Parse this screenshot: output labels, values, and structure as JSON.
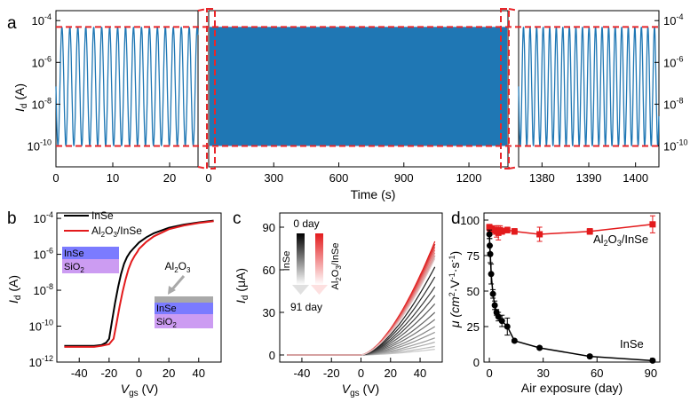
{
  "colors": {
    "blue": "#1f77b4",
    "red_dash": "#e8262a",
    "black": "#000000",
    "red": "#e31a1c",
    "gray": "#b0b0b0",
    "inse_layer": "#7b7bff",
    "sio2_layer": "#cc9cf2",
    "al2o3_layer": "#a9a9a9"
  },
  "panels": {
    "a": "a",
    "b": "b",
    "c": "c",
    "d": "d"
  },
  "chart_data": [
    {
      "id": "a",
      "type": "line",
      "title": "",
      "xlabel": "Time (s)",
      "ylabel_main": "I",
      "ylabel_sub": "d",
      "ylabel_unit": " (A)",
      "yscale": "log",
      "ylim": [
        1e-11,
        0.0003
      ],
      "yticks": [
        {
          "base": "10",
          "exp": "-4"
        },
        {
          "base": "10",
          "exp": "-6"
        },
        {
          "base": "10",
          "exp": "-8"
        },
        {
          "base": "10",
          "exp": "-10"
        }
      ],
      "ytick_values": [
        0.0001,
        1e-06,
        1e-08,
        1e-10
      ],
      "signal": {
        "high": 5e-05,
        "low": 1e-10,
        "period_s": 1.4
      },
      "segments": [
        {
          "name": "start",
          "xlim": [
            0,
            25
          ],
          "xticks": [
            "0",
            "10",
            "20"
          ],
          "xtick_values": [
            0,
            10,
            20
          ]
        },
        {
          "name": "full",
          "xlim": [
            0,
            1380
          ],
          "xticks": [
            "0",
            "300",
            "600",
            "900",
            "1200"
          ],
          "xtick_values": [
            0,
            300,
            600,
            900,
            1200
          ],
          "dense": true
        },
        {
          "name": "end",
          "xlim": [
            1375,
            1405
          ],
          "xticks": [
            "1380",
            "1390",
            "1400"
          ],
          "xtick_values": [
            1380,
            1390,
            1400
          ]
        }
      ]
    },
    {
      "id": "b",
      "type": "line",
      "xlabel_main": "V",
      "xlabel_sub": "gs",
      "xlabel_unit": " (V)",
      "ylabel_main": "I",
      "ylabel_sub": "d",
      "ylabel_unit": " (A)",
      "yscale": "log",
      "xlim": [
        -55,
        55
      ],
      "ylim": [
        1e-12,
        0.0002
      ],
      "xticks": [
        "-40",
        "-20",
        "0",
        "20",
        "40"
      ],
      "xtick_values": [
        -40,
        -20,
        0,
        20,
        40
      ],
      "yticks": [
        {
          "base": "10",
          "exp": "-4"
        },
        {
          "base": "10",
          "exp": "-6"
        },
        {
          "base": "10",
          "exp": "-8"
        },
        {
          "base": "10",
          "exp": "-10"
        },
        {
          "base": "10",
          "exp": "-12"
        }
      ],
      "ytick_values": [
        0.0001,
        1e-06,
        1e-08,
        1e-10,
        1e-12
      ],
      "series": [
        {
          "name": "InSe",
          "color": "#000000",
          "x": [
            -50,
            -40,
            -30,
            -25,
            -22,
            -20,
            -18,
            -16,
            -14,
            -12,
            -10,
            -8,
            -6,
            -4,
            -2,
            0,
            5,
            10,
            20,
            30,
            40,
            50
          ],
          "y": [
            8e-12,
            8e-12,
            8e-12,
            9e-12,
            1.2e-11,
            2e-11,
            2e-10,
            2e-09,
            1.5e-08,
            8e-08,
            3e-07,
            7e-07,
            1.3e-06,
            2e-06,
            3e-06,
            4.5e-06,
            9e-06,
            1.5e-05,
            3e-05,
            4.5e-05,
            6e-05,
            7.5e-05
          ]
        },
        {
          "name": "Al2O3/InSe",
          "color": "#e31a1c",
          "x": [
            -50,
            -40,
            -30,
            -25,
            -20,
            -17,
            -15,
            -13,
            -11,
            -9,
            -7,
            -5,
            -3,
            -1,
            0,
            5,
            10,
            20,
            30,
            40,
            50
          ],
          "y": [
            7e-12,
            7e-12,
            7e-12,
            8e-12,
            1e-11,
            2e-11,
            1.5e-10,
            1.2e-09,
            8e-09,
            4e-08,
            1.5e-07,
            4e-07,
            8e-07,
            1.4e-06,
            2e-06,
            5e-06,
            1e-05,
            2.5e-05,
            4e-05,
            5.5e-05,
            7e-05
          ]
        }
      ],
      "legend": [
        {
          "label": "InSe",
          "color": "#000000"
        },
        {
          "label_main": "Al",
          "sub1": "2",
          "mid": "O",
          "sub2": "3",
          "tail": "/InSe",
          "color": "#e31a1c"
        }
      ],
      "inset1": {
        "top": "InSe",
        "bottom_main": "SiO",
        "bottom_sub": "2"
      },
      "inset2": {
        "label_main": "Al",
        "sub1": "2",
        "mid": "O",
        "sub2": "3",
        "mid_layer": "InSe",
        "bottom_main": "SiO",
        "bottom_sub": "2"
      }
    },
    {
      "id": "c",
      "type": "line",
      "xlabel_main": "V",
      "xlabel_sub": "gs",
      "xlabel_unit": " (V)",
      "ylabel_main": "I",
      "ylabel_sub": "d",
      "ylabel_unit": " (μA)",
      "xlim": [
        -55,
        55
      ],
      "ylim": [
        -5,
        100
      ],
      "xticks": [
        "-40",
        "-20",
        "0",
        "20",
        "40"
      ],
      "xtick_values": [
        -40,
        -20,
        0,
        20,
        40
      ],
      "yticks": [
        "0",
        "30",
        "60",
        "90"
      ],
      "ytick_values": [
        0,
        30,
        60,
        90
      ],
      "threshold_v": 0,
      "inse_endpoints_uA": [
        78,
        70,
        62,
        55,
        48,
        42,
        36,
        30,
        25,
        20,
        16,
        12,
        9,
        6,
        4
      ],
      "al2o3_endpoints_uA": [
        80,
        78,
        76,
        74,
        72,
        70,
        68
      ],
      "legend_top": "0 day",
      "legend_bottom": "91 day",
      "legend_left": "InSe",
      "legend_right_main": "Al",
      "legend_right_sub1": "2",
      "legend_right_mid": "O",
      "legend_right_sub2": "3",
      "legend_right_tail": "/InSe"
    },
    {
      "id": "d",
      "type": "scatter",
      "xlabel": "Air exposure (day)",
      "ylabel_main": "μ (cm",
      "ylabel_sup1": "2",
      "ylabel_mid": "·V",
      "ylabel_sup2": "-1",
      "ylabel_mid2": "·s",
      "ylabel_sup3": "-1",
      "ylabel_tail": ")",
      "xlim": [
        -3,
        95
      ],
      "ylim": [
        0,
        105
      ],
      "xticks": [
        "0",
        "30",
        "60",
        "90"
      ],
      "xtick_values": [
        0,
        30,
        60,
        90
      ],
      "yticks": [
        "0",
        "25",
        "50",
        "75",
        "100"
      ],
      "ytick_values": [
        0,
        25,
        50,
        75,
        100
      ],
      "series": [
        {
          "name": "Al2O3/InSe",
          "color": "#e31a1c",
          "marker": "square",
          "x": [
            0,
            0.5,
            1,
            2,
            3,
            4,
            5,
            6,
            7,
            10,
            14,
            28,
            56,
            91
          ],
          "y": [
            95,
            94,
            94,
            93,
            93,
            92,
            91,
            93,
            92,
            93,
            92,
            90,
            92,
            97
          ],
          "err": [
            2,
            2,
            2,
            2,
            3,
            4,
            5,
            3,
            2,
            2,
            2,
            5,
            2,
            6
          ]
        },
        {
          "name": "InSe",
          "color": "#000000",
          "marker": "circle",
          "x": [
            0,
            0.2,
            0.5,
            1,
            2,
            3,
            4,
            5,
            7,
            10,
            14,
            28,
            56,
            91
          ],
          "y": [
            90,
            82,
            76,
            62,
            48,
            40,
            35,
            32,
            29,
            25,
            15,
            10,
            4,
            1
          ],
          "err": [
            3,
            5,
            6,
            7,
            3,
            3,
            2,
            3,
            4,
            6,
            1,
            1,
            1,
            1
          ]
        }
      ],
      "label_top_main": "Al",
      "label_top_sub1": "2",
      "label_top_mid": "O",
      "label_top_sub2": "3",
      "label_top_tail": "/InSe",
      "label_bottom": "InSe"
    }
  ]
}
